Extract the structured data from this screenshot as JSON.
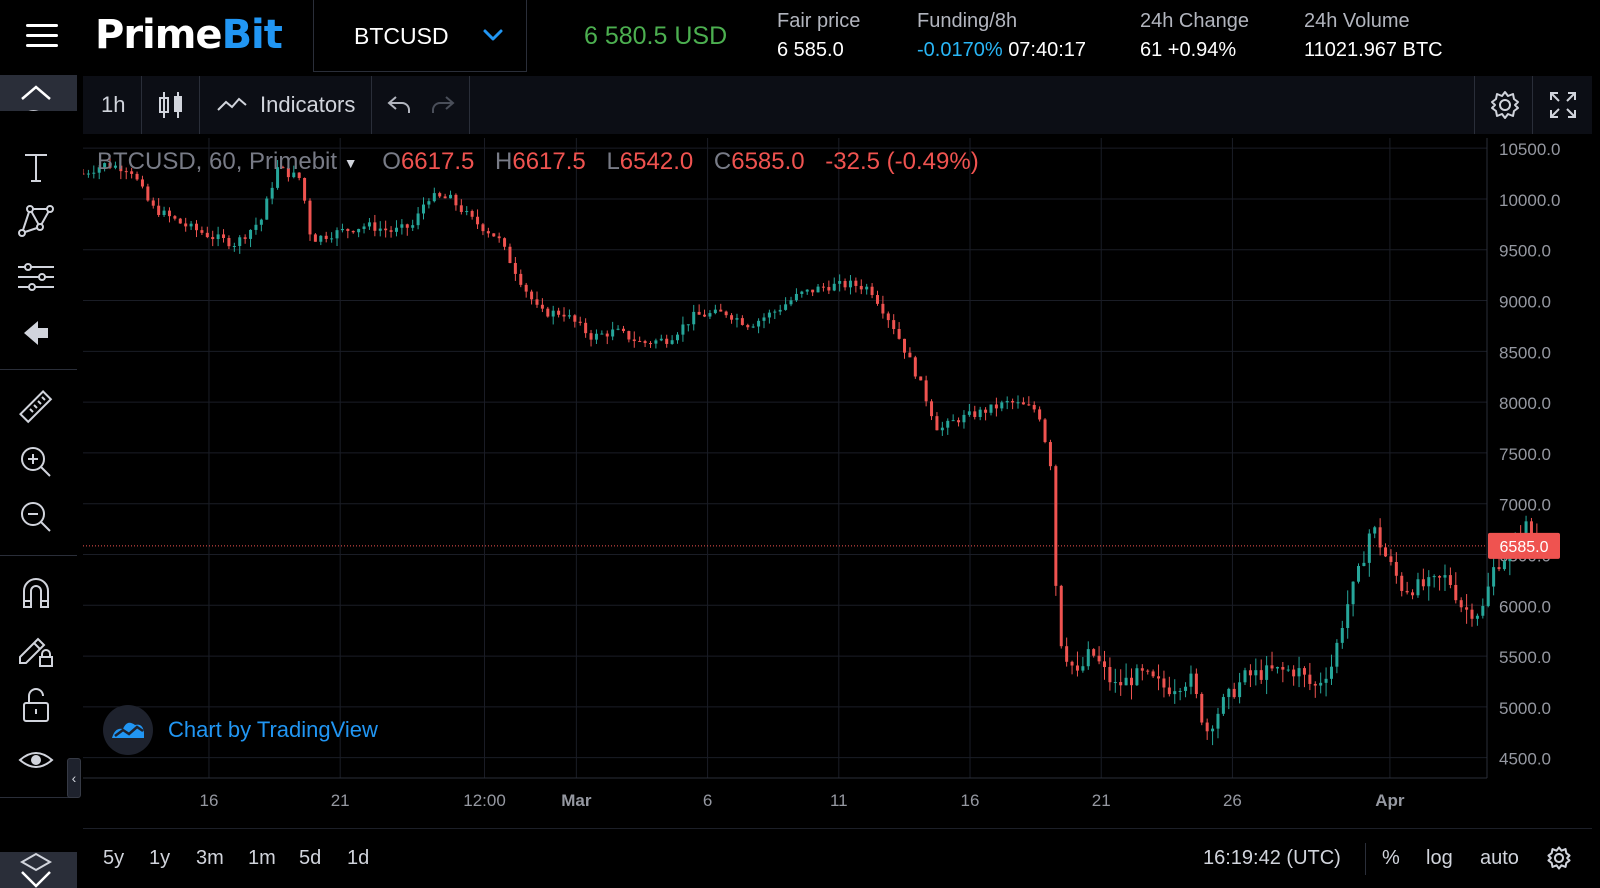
{
  "header": {
    "logo_part1": "Prime",
    "logo_part2": "Bit",
    "symbol": "BTCUSD",
    "last_price": "6 580.5 USD",
    "fair_price": {
      "label": "Fair price",
      "value": "6 585.0"
    },
    "funding": {
      "label": "Funding/8h",
      "rate": "-0.0170%",
      "countdown": "07:40:17"
    },
    "change_24h": {
      "label": "24h Change",
      "value": "61 +0.94%"
    },
    "volume_24h": {
      "label": "24h Volume",
      "value": "11021.967 BTC"
    }
  },
  "left_toolbar": {
    "icons": [
      "chevron-up-icon",
      "text-icon",
      "pattern-icon",
      "forecast-icon",
      "back-arrow-icon",
      "ruler-icon",
      "zoom-in-icon",
      "zoom-out-icon",
      "magnet-icon",
      "lock-drawing-icon",
      "unlock-icon",
      "eye-icon",
      "layers-icon"
    ]
  },
  "toolbar": {
    "interval": "1h",
    "indicators_label": "Indicators"
  },
  "legend": {
    "symbol": "BTCUSD, 60, Primebit",
    "o_label": "O",
    "o_value": "6617.5",
    "h_label": "H",
    "h_value": "6617.5",
    "l_label": "L",
    "l_value": "6542.0",
    "c_label": "C",
    "c_value": "6585.0",
    "change": "-32.5 (-0.49%)"
  },
  "watermark": {
    "text": "Chart by TradingView"
  },
  "bottom": {
    "ranges": [
      "5y",
      "1y",
      "3m",
      "1m",
      "5d",
      "1d"
    ],
    "clock": "16:19:42 (UTC)",
    "percent_label": "%",
    "log_label": "log",
    "auto_label": "auto"
  },
  "chart_data": {
    "type": "candlestick",
    "symbol": "BTCUSD",
    "interval": "60",
    "y_axis_side": "right",
    "ylim": [
      4300,
      10600
    ],
    "y_ticks": [
      4500,
      5000,
      5500,
      6000,
      6500,
      7000,
      7500,
      8000,
      8500,
      9000,
      9500,
      10000,
      10500
    ],
    "y_tick_labels": [
      "4500.0",
      "5000.0",
      "5500.0",
      "6000.0",
      "6500.0",
      "7000.0",
      "7500.0",
      "8000.0",
      "8500.0",
      "9000.0",
      "9500.0",
      "10000.0",
      "10500.0"
    ],
    "x_tick_labels": [
      "16",
      "21",
      "12:00",
      "Mar",
      "6",
      "11",
      "16",
      "21",
      "26",
      "Apr"
    ],
    "x_tick_days": [
      16,
      21,
      26.5,
      30,
      35,
      40,
      45,
      50,
      55,
      61
    ],
    "x_range_days": [
      11.2,
      64.7
    ],
    "current_price": 6585.0,
    "current_price_label": "6585.0",
    "up_color": "#26a69a",
    "down_color": "#ef5350",
    "price_path": [
      [
        11.2,
        10250
      ],
      [
        12.0,
        10340
      ],
      [
        13.0,
        10300
      ],
      [
        13.8,
        9920
      ],
      [
        15.0,
        9750
      ],
      [
        16.2,
        9620
      ],
      [
        17.0,
        9560
      ],
      [
        18.0,
        9800
      ],
      [
        18.6,
        10300
      ],
      [
        19.5,
        10200
      ],
      [
        19.9,
        9600
      ],
      [
        21.0,
        9680
      ],
      [
        22.0,
        9740
      ],
      [
        23.0,
        9680
      ],
      [
        23.8,
        9740
      ],
      [
        24.3,
        10020
      ],
      [
        25.2,
        10000
      ],
      [
        26.0,
        9800
      ],
      [
        27.0,
        9620
      ],
      [
        28.0,
        9140
      ],
      [
        28.6,
        8880
      ],
      [
        29.5,
        8880
      ],
      [
        30.6,
        8640
      ],
      [
        31.5,
        8700
      ],
      [
        32.5,
        8580
      ],
      [
        33.5,
        8620
      ],
      [
        34.5,
        8850
      ],
      [
        35.7,
        8880
      ],
      [
        36.6,
        8760
      ],
      [
        37.6,
        8900
      ],
      [
        38.5,
        9060
      ],
      [
        39.5,
        9140
      ],
      [
        40.5,
        9160
      ],
      [
        41.2,
        9120
      ],
      [
        42.1,
        8740
      ],
      [
        43.0,
        8250
      ],
      [
        43.8,
        7720
      ],
      [
        44.5,
        7830
      ],
      [
        45.4,
        7900
      ],
      [
        46.5,
        8000
      ],
      [
        47.6,
        7920
      ],
      [
        48.1,
        7360
      ],
      [
        48.3,
        6020
      ],
      [
        48.5,
        5600
      ],
      [
        49.1,
        5300
      ],
      [
        49.6,
        5550
      ],
      [
        50.5,
        5200
      ],
      [
        51.5,
        5320
      ],
      [
        52.5,
        5180
      ],
      [
        53.4,
        5280
      ],
      [
        54.0,
        4760
      ],
      [
        54.6,
        5020
      ],
      [
        55.5,
        5300
      ],
      [
        56.5,
        5350
      ],
      [
        57.5,
        5360
      ],
      [
        58.1,
        5180
      ],
      [
        58.8,
        5420
      ],
      [
        59.3,
        5950
      ],
      [
        59.9,
        6380
      ],
      [
        60.3,
        6800
      ],
      [
        60.8,
        6500
      ],
      [
        61.5,
        6160
      ],
      [
        62.5,
        6200
      ],
      [
        63.2,
        6280
      ],
      [
        63.8,
        5960
      ],
      [
        64.5,
        5930
      ],
      [
        65.0,
        6400
      ],
      [
        65.6,
        6520
      ],
      [
        66.2,
        6780
      ],
      [
        66.6,
        6585
      ]
    ]
  }
}
